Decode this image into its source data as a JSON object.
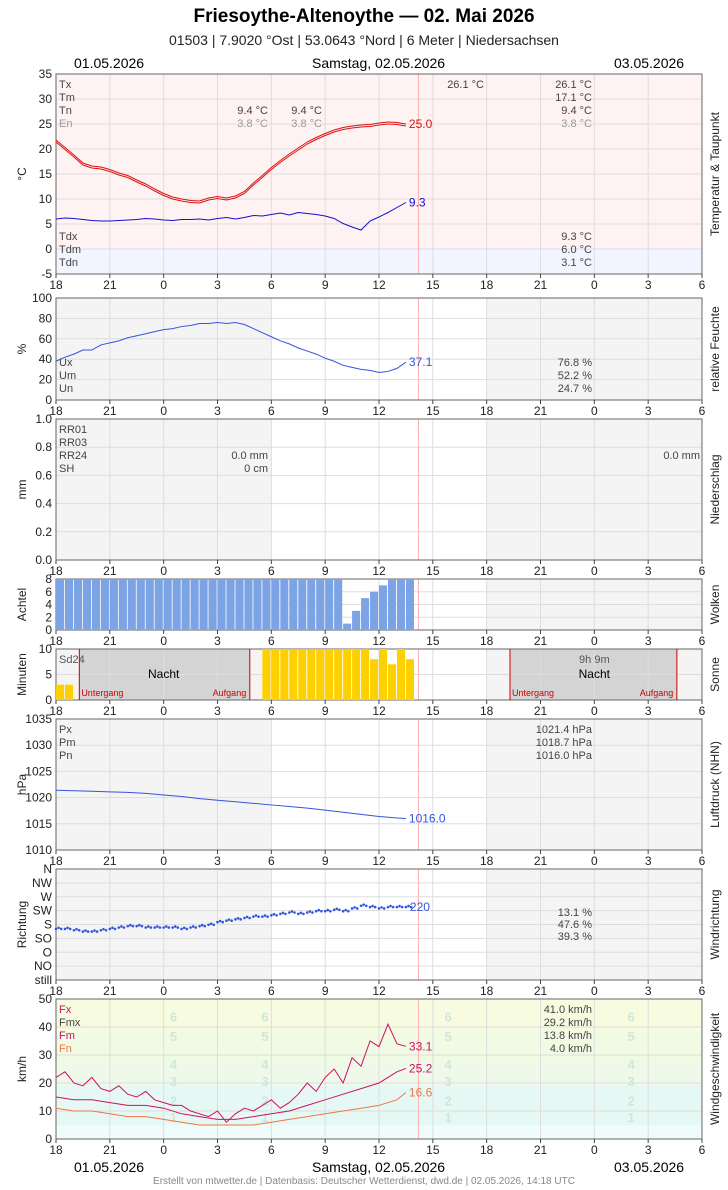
{
  "header": {
    "title": "Friesoythe-Altenoythe  —  02. Mai 2026",
    "subtitle": "01503  |  7.9020 °Ost  |  53.0643 °Nord  |  6 Meter  |  Niedersachsen"
  },
  "dates": {
    "left": "01.05.2026",
    "center": "Samstag, 02.05.2026",
    "right": "03.05.2026"
  },
  "footer": "Erstellt von mtwetter.de | Datenbasis: Deutscher Wetterdienst, dwd.de | 02.05.2026, 14:18 UTC",
  "x_ticks": [
    "18",
    "21",
    "0",
    "3",
    "6",
    "9",
    "12",
    "15",
    "18",
    "21",
    "0",
    "3",
    "6"
  ],
  "chart_data": [
    {
      "type": "line",
      "id": "temp",
      "side_label": "Temperatur & Taupunkt",
      "ylabel": "°C",
      "ylim": [
        -5,
        35
      ],
      "yticks": [
        "35",
        "30",
        "25",
        "20",
        "15",
        "10",
        "5",
        "0",
        "-5"
      ],
      "x_unit": "hours since 18:00 on 01.05.2026",
      "series": [
        {
          "name": "Temperatur",
          "color": "#dd1111",
          "x": [
            0,
            0.5,
            1,
            1.5,
            2,
            2.5,
            3,
            3.5,
            4,
            4.5,
            5,
            5.5,
            6,
            6.5,
            7,
            7.5,
            8,
            8.5,
            9,
            9.5,
            10,
            10.5,
            11,
            11.5,
            12,
            12.5,
            13,
            13.5,
            14,
            14.5,
            15,
            15.5,
            16,
            16.5,
            17,
            17.5,
            18,
            18.5,
            19,
            19.5
          ],
          "values": [
            21.8,
            20.3,
            18.8,
            17.2,
            16.6,
            16.4,
            15.9,
            15.2,
            14.7,
            13.8,
            13.0,
            12.0,
            11.1,
            10.4,
            10.0,
            9.7,
            9.6,
            10.2,
            10.5,
            10.2,
            10.6,
            11.5,
            13.2,
            14.7,
            16.3,
            17.7,
            19.0,
            20.2,
            21.4,
            22.3,
            23.1,
            23.8,
            24.3,
            24.6,
            24.8,
            24.9,
            25.2,
            25.4,
            25.3,
            25.0
          ]
        },
        {
          "name": "Taupunkt",
          "color": "#1111cc",
          "x": [
            0,
            0.5,
            1,
            1.5,
            2,
            2.5,
            3,
            3.5,
            4,
            4.5,
            5,
            5.5,
            6,
            6.5,
            7,
            7.5,
            8,
            8.5,
            9,
            9.5,
            10,
            10.5,
            11,
            11.5,
            12,
            12.5,
            13,
            13.5,
            14,
            14.5,
            15,
            15.5,
            16,
            16.5,
            17,
            17.5,
            18,
            18.5,
            19,
            19.5
          ],
          "values": [
            6.0,
            6.2,
            6.1,
            5.9,
            5.7,
            5.6,
            5.6,
            5.7,
            5.8,
            5.9,
            6.1,
            6.0,
            5.8,
            5.7,
            5.9,
            5.9,
            6.0,
            5.8,
            6.1,
            6.3,
            6.0,
            6.3,
            6.7,
            6.6,
            6.9,
            7.2,
            6.8,
            7.3,
            7.1,
            6.9,
            6.6,
            6.1,
            5.1,
            4.4,
            3.8,
            5.6,
            6.4,
            7.3,
            8.3,
            9.3
          ]
        }
      ],
      "end_labels": [
        "25.0",
        "9.3"
      ],
      "stats_top": {
        "labels": [
          "Tx",
          "Tm",
          "Tn",
          "En"
        ],
        "col1": [
          "",
          "",
          "9.4 °C",
          "3.8 °C"
        ],
        "col2": [
          "",
          "",
          "9.4 °C",
          "3.8 °C"
        ],
        "col3": [
          "26.1 °C",
          "",
          "",
          ""
        ],
        "col4": [
          "26.1 °C",
          "17.1 °C",
          "9.4 °C",
          "3.8 °C"
        ]
      },
      "stats_bottom": {
        "labels": [
          "Tdx",
          "Tdm",
          "Tdn"
        ],
        "values": [
          "9.3 °C",
          "6.0 °C",
          "3.1 °C"
        ]
      }
    },
    {
      "type": "line",
      "id": "humidity",
      "side_label": "relative Feuchte",
      "ylabel": "%",
      "ylim": [
        0,
        100
      ],
      "yticks": [
        "100",
        "80",
        "60",
        "40",
        "20",
        "0"
      ],
      "series": [
        {
          "name": "relative Feuchte",
          "color": "#3355dd",
          "x": [
            0,
            0.5,
            1,
            1.5,
            2,
            2.5,
            3,
            3.5,
            4,
            4.5,
            5,
            5.5,
            6,
            6.5,
            7,
            7.5,
            8,
            8.5,
            9,
            9.5,
            10,
            10.5,
            11,
            11.5,
            12,
            12.5,
            13,
            13.5,
            14,
            14.5,
            15,
            15.5,
            16,
            16.5,
            17,
            17.5,
            18,
            18.5,
            19,
            19.5
          ],
          "values": [
            38,
            42,
            45,
            49,
            49,
            54,
            56,
            58,
            61,
            63,
            65,
            67,
            69,
            70,
            72,
            73,
            75,
            75,
            76,
            75,
            76,
            74,
            70,
            66,
            62,
            58,
            55,
            51,
            48,
            45,
            41,
            38,
            34,
            32,
            30,
            29,
            27,
            28,
            31,
            37.1
          ]
        }
      ],
      "end_labels": [
        "37.1"
      ],
      "stats": {
        "labels": [
          "Ux",
          "Um",
          "Un"
        ],
        "values": [
          "76.8 %",
          "52.2 %",
          "24.7 %"
        ]
      }
    },
    {
      "type": "bar",
      "id": "precip",
      "side_label": "Niederschlag",
      "ylabel": "mm",
      "ylim": [
        0,
        1.0
      ],
      "yticks": [
        "1.0",
        "0.8",
        "0.6",
        "0.4",
        "0.2",
        "0.0"
      ],
      "values": [],
      "stats": {
        "labels": [
          "RR01",
          "RR03",
          "RR24",
          "SH"
        ],
        "col1": [
          "",
          "",
          "0.0 mm",
          "0 cm"
        ],
        "col2": [
          "",
          "",
          "0.0 mm",
          ""
        ]
      }
    },
    {
      "type": "bar",
      "id": "clouds",
      "side_label": "Wolken",
      "ylabel": "Achtel",
      "ylim": [
        0,
        8
      ],
      "yticks": [
        "8",
        "6",
        "4",
        "2",
        "0"
      ],
      "x": [
        0,
        0.5,
        1,
        1.5,
        2,
        2.5,
        3,
        3.5,
        4,
        4.5,
        5,
        5.5,
        6,
        6.5,
        7,
        7.5,
        8,
        8.5,
        9,
        9.5,
        10,
        10.5,
        11,
        11.5,
        12,
        12.5,
        13,
        13.5,
        14,
        14.5,
        15,
        15.5,
        16,
        16.5,
        17,
        17.5,
        18,
        18.5,
        19,
        19.5
      ],
      "values": [
        8,
        8,
        8,
        8,
        8,
        8,
        8,
        8,
        8,
        8,
        8,
        8,
        8,
        8,
        8,
        8,
        8,
        8,
        8,
        8,
        8,
        8,
        8,
        8,
        8,
        8,
        8,
        8,
        8,
        8,
        8,
        8,
        1,
        3,
        5,
        6,
        7,
        8,
        8,
        8
      ]
    },
    {
      "type": "bar",
      "id": "sun",
      "side_label": "Sonne",
      "ylabel": "Minuten",
      "ylim": [
        0,
        10
      ],
      "yticks": [
        "10",
        "5",
        "0"
      ],
      "label": "Sd24",
      "sun_total": "9h 9m",
      "night_label": "Nacht",
      "sunset_label": "Untergang",
      "sunrise_label": "Aufgang",
      "x": [
        0,
        0.5,
        1,
        1.5,
        2,
        2.5,
        3,
        3.5,
        4,
        4.5,
        5,
        5.5,
        6,
        6.5,
        7,
        7.5,
        8,
        8.5,
        9,
        9.5,
        10,
        10.5,
        11,
        11.5,
        12,
        12.5,
        13,
        13.5,
        14,
        14.5,
        15,
        15.5,
        16,
        16.5,
        17,
        17.5,
        18,
        18.5,
        19,
        19.5
      ],
      "values": [
        3,
        3,
        0,
        0,
        0,
        0,
        0,
        0,
        0,
        0,
        0,
        0,
        0,
        0,
        0,
        0,
        0,
        0,
        0,
        0,
        0,
        0,
        0,
        10,
        10,
        10,
        10,
        10,
        10,
        10,
        10,
        10,
        10,
        10,
        10,
        8,
        10,
        7,
        10,
        8
      ]
    },
    {
      "type": "line",
      "id": "pressure",
      "side_label": "Luftdruck (NHN)",
      "ylabel": "hPa",
      "ylim": [
        1010,
        1035
      ],
      "yticks": [
        "1035",
        "1030",
        "1025",
        "1020",
        "1015",
        "1010"
      ],
      "series": [
        {
          "name": "Luftdruck",
          "color": "#3355dd",
          "x": [
            0,
            1,
            2,
            3,
            4,
            5,
            6,
            7,
            8,
            9,
            10,
            11,
            12,
            13,
            14,
            15,
            16,
            17,
            18,
            19,
            19.5
          ],
          "values": [
            1021.4,
            1021.3,
            1021.2,
            1021.1,
            1021.0,
            1020.8,
            1020.5,
            1020.2,
            1019.8,
            1019.5,
            1019.2,
            1018.9,
            1018.6,
            1018.3,
            1018.0,
            1017.6,
            1017.2,
            1016.8,
            1016.4,
            1016.1,
            1016.0
          ]
        }
      ],
      "end_labels": [
        "1016.0"
      ],
      "stats": {
        "labels": [
          "Px",
          "Pm",
          "Pn"
        ],
        "values": [
          "1021.4 hPa",
          "1018.7 hPa",
          "1016.0 hPa"
        ]
      }
    },
    {
      "type": "scatter",
      "id": "wind_dir",
      "side_label": "Windrichtung",
      "ylabel": "Richtung",
      "ylim": [
        0,
        360
      ],
      "yticks": [
        "N",
        "NW",
        "W",
        "SW",
        "S",
        "SO",
        "O",
        "NO",
        "still"
      ],
      "series": [
        {
          "name": "Windrichtung",
          "color": "#3355dd",
          "x": [
            0,
            0.5,
            1,
            1.5,
            2,
            2.5,
            3,
            3.5,
            4,
            4.5,
            5,
            5.5,
            6,
            6.5,
            7,
            7.5,
            8,
            8.5,
            9,
            9.5,
            10,
            10.5,
            11,
            11.5,
            12,
            12.5,
            13,
            13.5,
            14,
            14.5,
            15,
            15.5,
            16,
            16.5,
            17,
            17.5,
            18,
            18.5,
            19,
            19.5
          ],
          "values": [
            140,
            140,
            135,
            130,
            130,
            135,
            140,
            145,
            150,
            150,
            145,
            145,
            145,
            145,
            140,
            145,
            150,
            155,
            165,
            170,
            175,
            180,
            185,
            185,
            190,
            195,
            200,
            195,
            200,
            205,
            205,
            210,
            205,
            215,
            225,
            220,
            215,
            220,
            220,
            220
          ]
        }
      ],
      "end_labels": [
        "220"
      ],
      "stats": {
        "values": [
          "13.1 %",
          "47.6 %",
          "39.3 %"
        ]
      }
    },
    {
      "type": "line",
      "id": "wind_speed",
      "side_label": "Windgeschwindigkeit",
      "ylabel": "km/h",
      "ylim": [
        0,
        50
      ],
      "yticks": [
        "50",
        "40",
        "30",
        "20",
        "10",
        "0"
      ],
      "beaufort": [
        "1",
        "2",
        "3",
        "4",
        "5",
        "6"
      ],
      "series": [
        {
          "name": "Fx",
          "color": "#cc1166",
          "x": [
            0,
            0.5,
            1,
            1.5,
            2,
            2.5,
            3,
            3.5,
            4,
            4.5,
            5,
            5.5,
            6,
            6.5,
            7,
            7.5,
            8,
            8.5,
            9,
            9.5,
            10,
            10.5,
            11,
            11.5,
            12,
            12.5,
            13,
            13.5,
            14,
            14.5,
            15,
            15.5,
            16,
            16.5,
            17,
            17.5,
            18,
            18.5,
            19,
            19.5
          ],
          "values": [
            22,
            24,
            20,
            19,
            22,
            18,
            17,
            19,
            16,
            15,
            17,
            14,
            13,
            12,
            12,
            10,
            9,
            8,
            10,
            6,
            9,
            11,
            10,
            12,
            14,
            11,
            13,
            16,
            20,
            17,
            22,
            25,
            20,
            29,
            26,
            35,
            33,
            41,
            34,
            33.1
          ]
        },
        {
          "name": "Fm",
          "color": "#cc1166",
          "x": [
            0,
            1,
            2,
            3,
            4,
            5,
            6,
            7,
            8,
            9,
            10,
            11,
            12,
            13,
            14,
            15,
            16,
            17,
            18,
            19,
            19.5
          ],
          "values": [
            15,
            14,
            14,
            13,
            12,
            12,
            11,
            9,
            8,
            7,
            7,
            8,
            9,
            10,
            12,
            14,
            16,
            18,
            20,
            24,
            25.2
          ]
        },
        {
          "name": "Fn",
          "color": "#ee7744",
          "x": [
            0,
            1,
            2,
            3,
            4,
            5,
            6,
            7,
            8,
            9,
            10,
            11,
            12,
            13,
            14,
            15,
            16,
            17,
            18,
            19,
            19.5
          ],
          "values": [
            11,
            10,
            10,
            9,
            8,
            8,
            7,
            6,
            5,
            5,
            5,
            5,
            6,
            7,
            8,
            9,
            10,
            11,
            12,
            14,
            16.6
          ]
        }
      ],
      "end_labels": [
        "33.1",
        "25.2",
        "16.6"
      ],
      "stats": {
        "labels": [
          "Fx",
          "Fmx",
          "Fm",
          "Fn"
        ],
        "values": [
          "41.0 km/h",
          "29.2 km/h",
          "13.8 km/h",
          "4.0 km/h"
        ]
      }
    }
  ]
}
